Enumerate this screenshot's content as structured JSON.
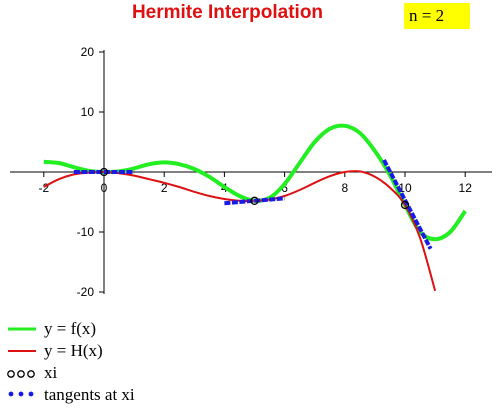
{
  "title": "Hermite Interpolation",
  "badge": "n = 2",
  "colors": {
    "f": "#22ee22",
    "H": "#dd1111",
    "tangent": "#1a1ae6",
    "title": "#e01010",
    "badge_bg": "#ffff00"
  },
  "chart_data": {
    "type": "line",
    "title": "Hermite Interpolation",
    "xlabel": "",
    "ylabel": "",
    "xlim": [
      -2.3,
      13.0
    ],
    "ylim": [
      -20,
      20
    ],
    "x_ticks": [
      -2,
      0,
      2,
      4,
      6,
      8,
      10,
      12
    ],
    "x_tick_labels": [
      "-2",
      "0",
      "2",
      "4",
      "6",
      "8",
      "10",
      "12"
    ],
    "y_ticks": [
      -20,
      -10,
      10,
      20
    ],
    "y_tick_labels": [
      "-20",
      "-10",
      "10",
      "20"
    ],
    "grid": false,
    "legend_position": "bottom-left",
    "series": [
      {
        "name": "y = f(x)",
        "color": "#22ee22",
        "x": [
          -2,
          -1.5,
          -1,
          -0.5,
          0,
          0.5,
          1,
          1.5,
          2,
          2.5,
          3,
          3.5,
          4,
          4.5,
          5,
          5.5,
          6,
          6.5,
          7,
          7.5,
          8,
          8.5,
          9,
          9.5,
          10,
          10.5,
          11,
          11.5,
          12
        ],
        "y": [
          1.7,
          1.5,
          0.8,
          0.2,
          0.0,
          0.1,
          0.6,
          1.3,
          1.6,
          1.3,
          0.5,
          -0.8,
          -2.5,
          -4.0,
          -4.8,
          -4.3,
          -2.0,
          1.5,
          5.0,
          7.2,
          7.7,
          6.5,
          3.5,
          -0.5,
          -5.5,
          -10.0,
          -11.2,
          -10.0,
          -6.5
        ]
      },
      {
        "name": "y = H(x)",
        "color": "#dd1111",
        "x": [
          -2,
          -1.5,
          -1,
          -0.5,
          0,
          0.5,
          1,
          1.5,
          2,
          2.5,
          3,
          3.5,
          4,
          4.5,
          5,
          5.5,
          6,
          6.5,
          7,
          7.5,
          8,
          8.5,
          9,
          9.5,
          10,
          10.5,
          11
        ],
        "y": [
          -2.5,
          -1.2,
          -0.4,
          -0.1,
          0.0,
          -0.2,
          -0.6,
          -1.2,
          -1.8,
          -2.5,
          -3.3,
          -4.0,
          -4.5,
          -4.8,
          -4.8,
          -4.6,
          -4.0,
          -3.0,
          -1.8,
          -0.7,
          0.0,
          0.1,
          -0.8,
          -2.6,
          -5.5,
          -11.0,
          -19.8
        ]
      }
    ],
    "points": {
      "name": "xi",
      "x": [
        0,
        5,
        10
      ],
      "y": [
        0,
        -4.8,
        -5.5
      ]
    },
    "tangents": {
      "name": "tangents at xi",
      "segments": [
        {
          "x": [
            -1,
            1
          ],
          "y": [
            0,
            0
          ]
        },
        {
          "x": [
            4,
            6
          ],
          "y": [
            -5.2,
            -4.4
          ]
        },
        {
          "x": [
            9.3,
            10.85
          ],
          "y": [
            2.0,
            -12.8
          ]
        }
      ]
    }
  },
  "legend": [
    {
      "label": "y = f(x)",
      "style": "line",
      "color": "#22ee22"
    },
    {
      "label": "y = H(x)",
      "style": "line",
      "color": "#dd1111"
    },
    {
      "label": "xi",
      "style": "circles",
      "color": "#000000"
    },
    {
      "label": "tangents at xi",
      "style": "dots",
      "color": "#1a1ae6"
    }
  ]
}
